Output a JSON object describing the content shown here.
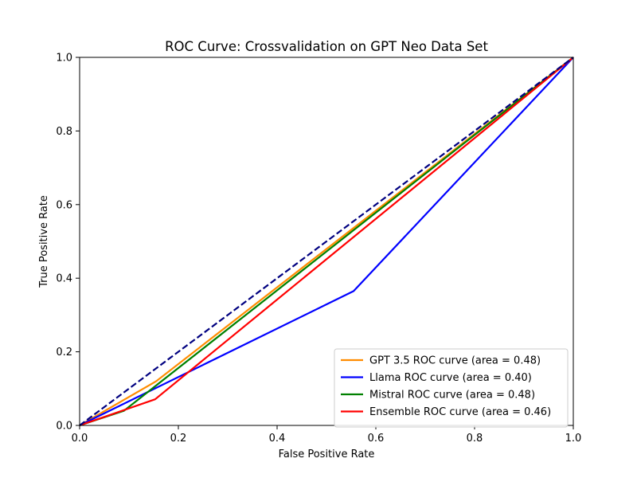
{
  "chart_data": {
    "type": "line",
    "title": "ROC Curve: Crossvalidation on GPT Neo Data Set",
    "xlabel": "False Positive Rate",
    "ylabel": "True Positive Rate",
    "xlim": [
      0.0,
      1.0
    ],
    "ylim": [
      0.0,
      1.0
    ],
    "x_ticks": [
      0.0,
      0.2,
      0.4,
      0.6,
      0.8,
      1.0
    ],
    "y_ticks": [
      0.0,
      0.2,
      0.4,
      0.6,
      0.8,
      1.0
    ],
    "x_tick_labels": [
      "0.0",
      "0.2",
      "0.4",
      "0.6",
      "0.8",
      "1.0"
    ],
    "y_tick_labels": [
      "0.0",
      "0.2",
      "0.4",
      "0.6",
      "0.8",
      "1.0"
    ],
    "grid": false,
    "legend_position": "lower-right",
    "series": [
      {
        "name": "GPT 3.5 ROC curve (area = 0.48)",
        "color": "#ff8c00",
        "dashed": false,
        "in_legend": true,
        "points": [
          [
            0.0,
            0.0
          ],
          [
            0.155,
            0.12
          ],
          [
            1.0,
            1.0
          ]
        ]
      },
      {
        "name": "Llama ROC curve (area = 0.40)",
        "color": "#0000ff",
        "dashed": false,
        "in_legend": true,
        "points": [
          [
            0.0,
            0.0
          ],
          [
            0.555,
            0.365
          ],
          [
            1.0,
            1.0
          ]
        ]
      },
      {
        "name": "Mistral ROC curve (area = 0.48)",
        "color": "#008000",
        "dashed": false,
        "in_legend": true,
        "points": [
          [
            0.0,
            0.0
          ],
          [
            0.0,
            0.0
          ],
          [
            0.09,
            0.04
          ],
          [
            1.0,
            1.0
          ]
        ]
      },
      {
        "name": "Ensemble ROC curve (area = 0.46)",
        "color": "#ff0000",
        "dashed": false,
        "in_legend": true,
        "points": [
          [
            0.0,
            0.0
          ],
          [
            0.153,
            0.071
          ],
          [
            1.0,
            1.0
          ]
        ]
      },
      {
        "name": "",
        "color": "#000080",
        "dashed": true,
        "in_legend": false,
        "points": [
          [
            0.0,
            0.0
          ],
          [
            1.0,
            1.0
          ]
        ]
      }
    ]
  }
}
